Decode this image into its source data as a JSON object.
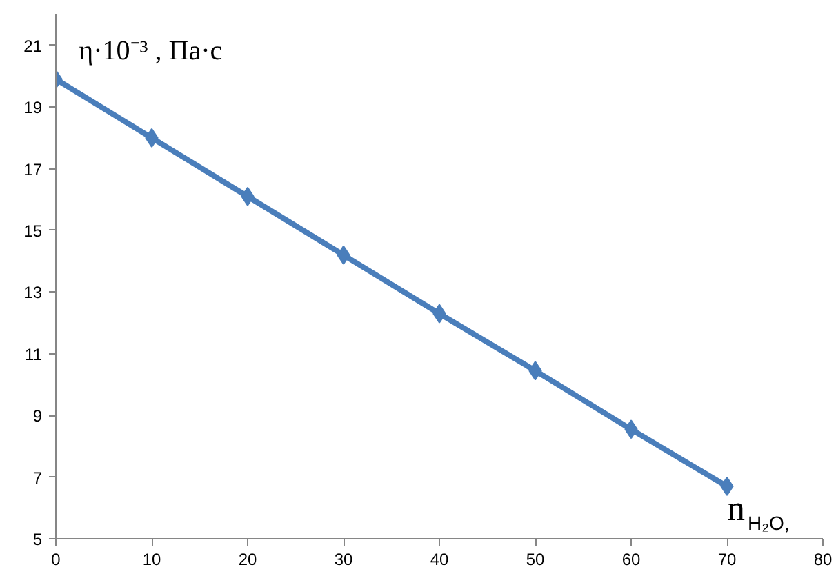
{
  "chart_data": {
    "type": "line",
    "xlabel": "n$_{H₂O}$,",
    "ylabel": "η·10⁻³ , Па·с",
    "x": [
      0,
      10,
      20,
      30,
      40,
      50,
      60,
      70
    ],
    "series": [
      {
        "color": "#4a7ebb",
        "values": [
          19.9,
          18.0,
          16.1,
          14.2,
          12.3,
          10.45,
          8.55,
          6.7
        ]
      }
    ],
    "xlim": [
      0,
      80
    ],
    "xticks": [
      0,
      10,
      20,
      30,
      40,
      50,
      60,
      70,
      80
    ],
    "ylim": [
      5,
      22
    ],
    "yticks": [
      5,
      7,
      9,
      11,
      13,
      15,
      17,
      19,
      21
    ],
    "grid": false,
    "marker": "diamond",
    "line_style": "solid"
  }
}
